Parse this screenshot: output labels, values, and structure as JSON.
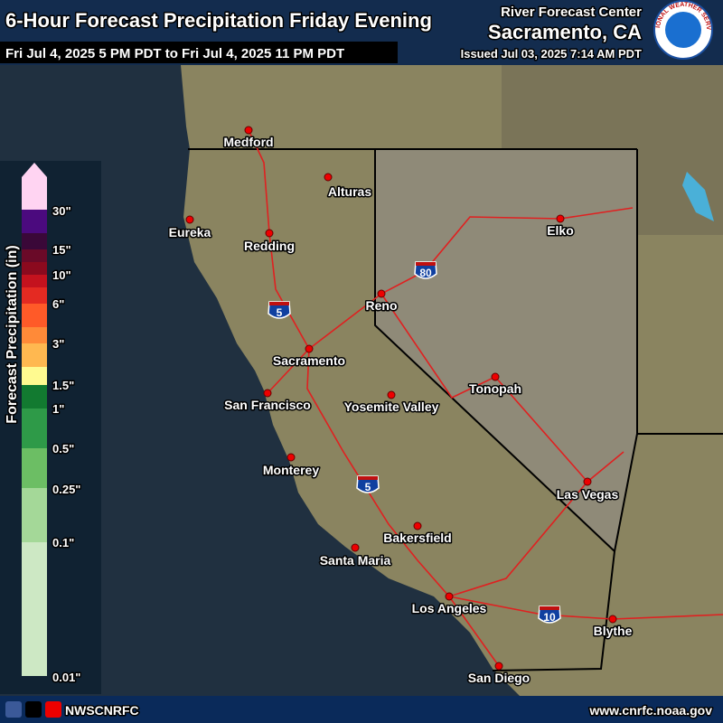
{
  "header": {
    "title": "6-Hour Forecast Precipitation Friday Evening",
    "valid_period": "Fri Jul 4, 2025 5 PM PDT to Fri Jul 4, 2025 11 PM PDT",
    "office": "River Forecast Center",
    "location": "Sacramento, CA",
    "issued": "Issued Jul 03, 2025 7:14 AM PDT"
  },
  "logo_text": "NATIONAL WEATHER SERVICE",
  "legend": {
    "title": "Forecast Precipitation (in)",
    "colors": [
      "#ffd4f2",
      "#4b0a7e",
      "#3a0838",
      "#6a0a28",
      "#8b0a1e",
      "#c4121e",
      "#e42a22",
      "#ff5a28",
      "#ff8a38",
      "#ffb850",
      "#fffa90",
      "#127a30",
      "#2e9a48",
      "#6cbe64",
      "#a4d898",
      "#cde8c4"
    ],
    "labels": [
      "30\"",
      "15\"",
      "10\"",
      "6\"",
      "3\"",
      "1.5\"",
      "1\"",
      "0.5\"",
      "0.25\"",
      "0.1\"",
      "0.01\""
    ]
  },
  "cities": [
    "Medford",
    "Alturas",
    "Eureka",
    "Redding",
    "Elko",
    "Reno",
    "Sacramento",
    "San Francisco",
    "Yosemite Valley",
    "Tonopah",
    "Monterey",
    "Las Vegas",
    "Bakersfield",
    "Santa Maria",
    "Los Angeles",
    "Blythe",
    "San Diego"
  ],
  "highways": [
    "5",
    "80",
    "5",
    "10"
  ],
  "footer": {
    "handle": "NWSCNRFC",
    "url": "www.cnrfc.noaa.gov"
  }
}
